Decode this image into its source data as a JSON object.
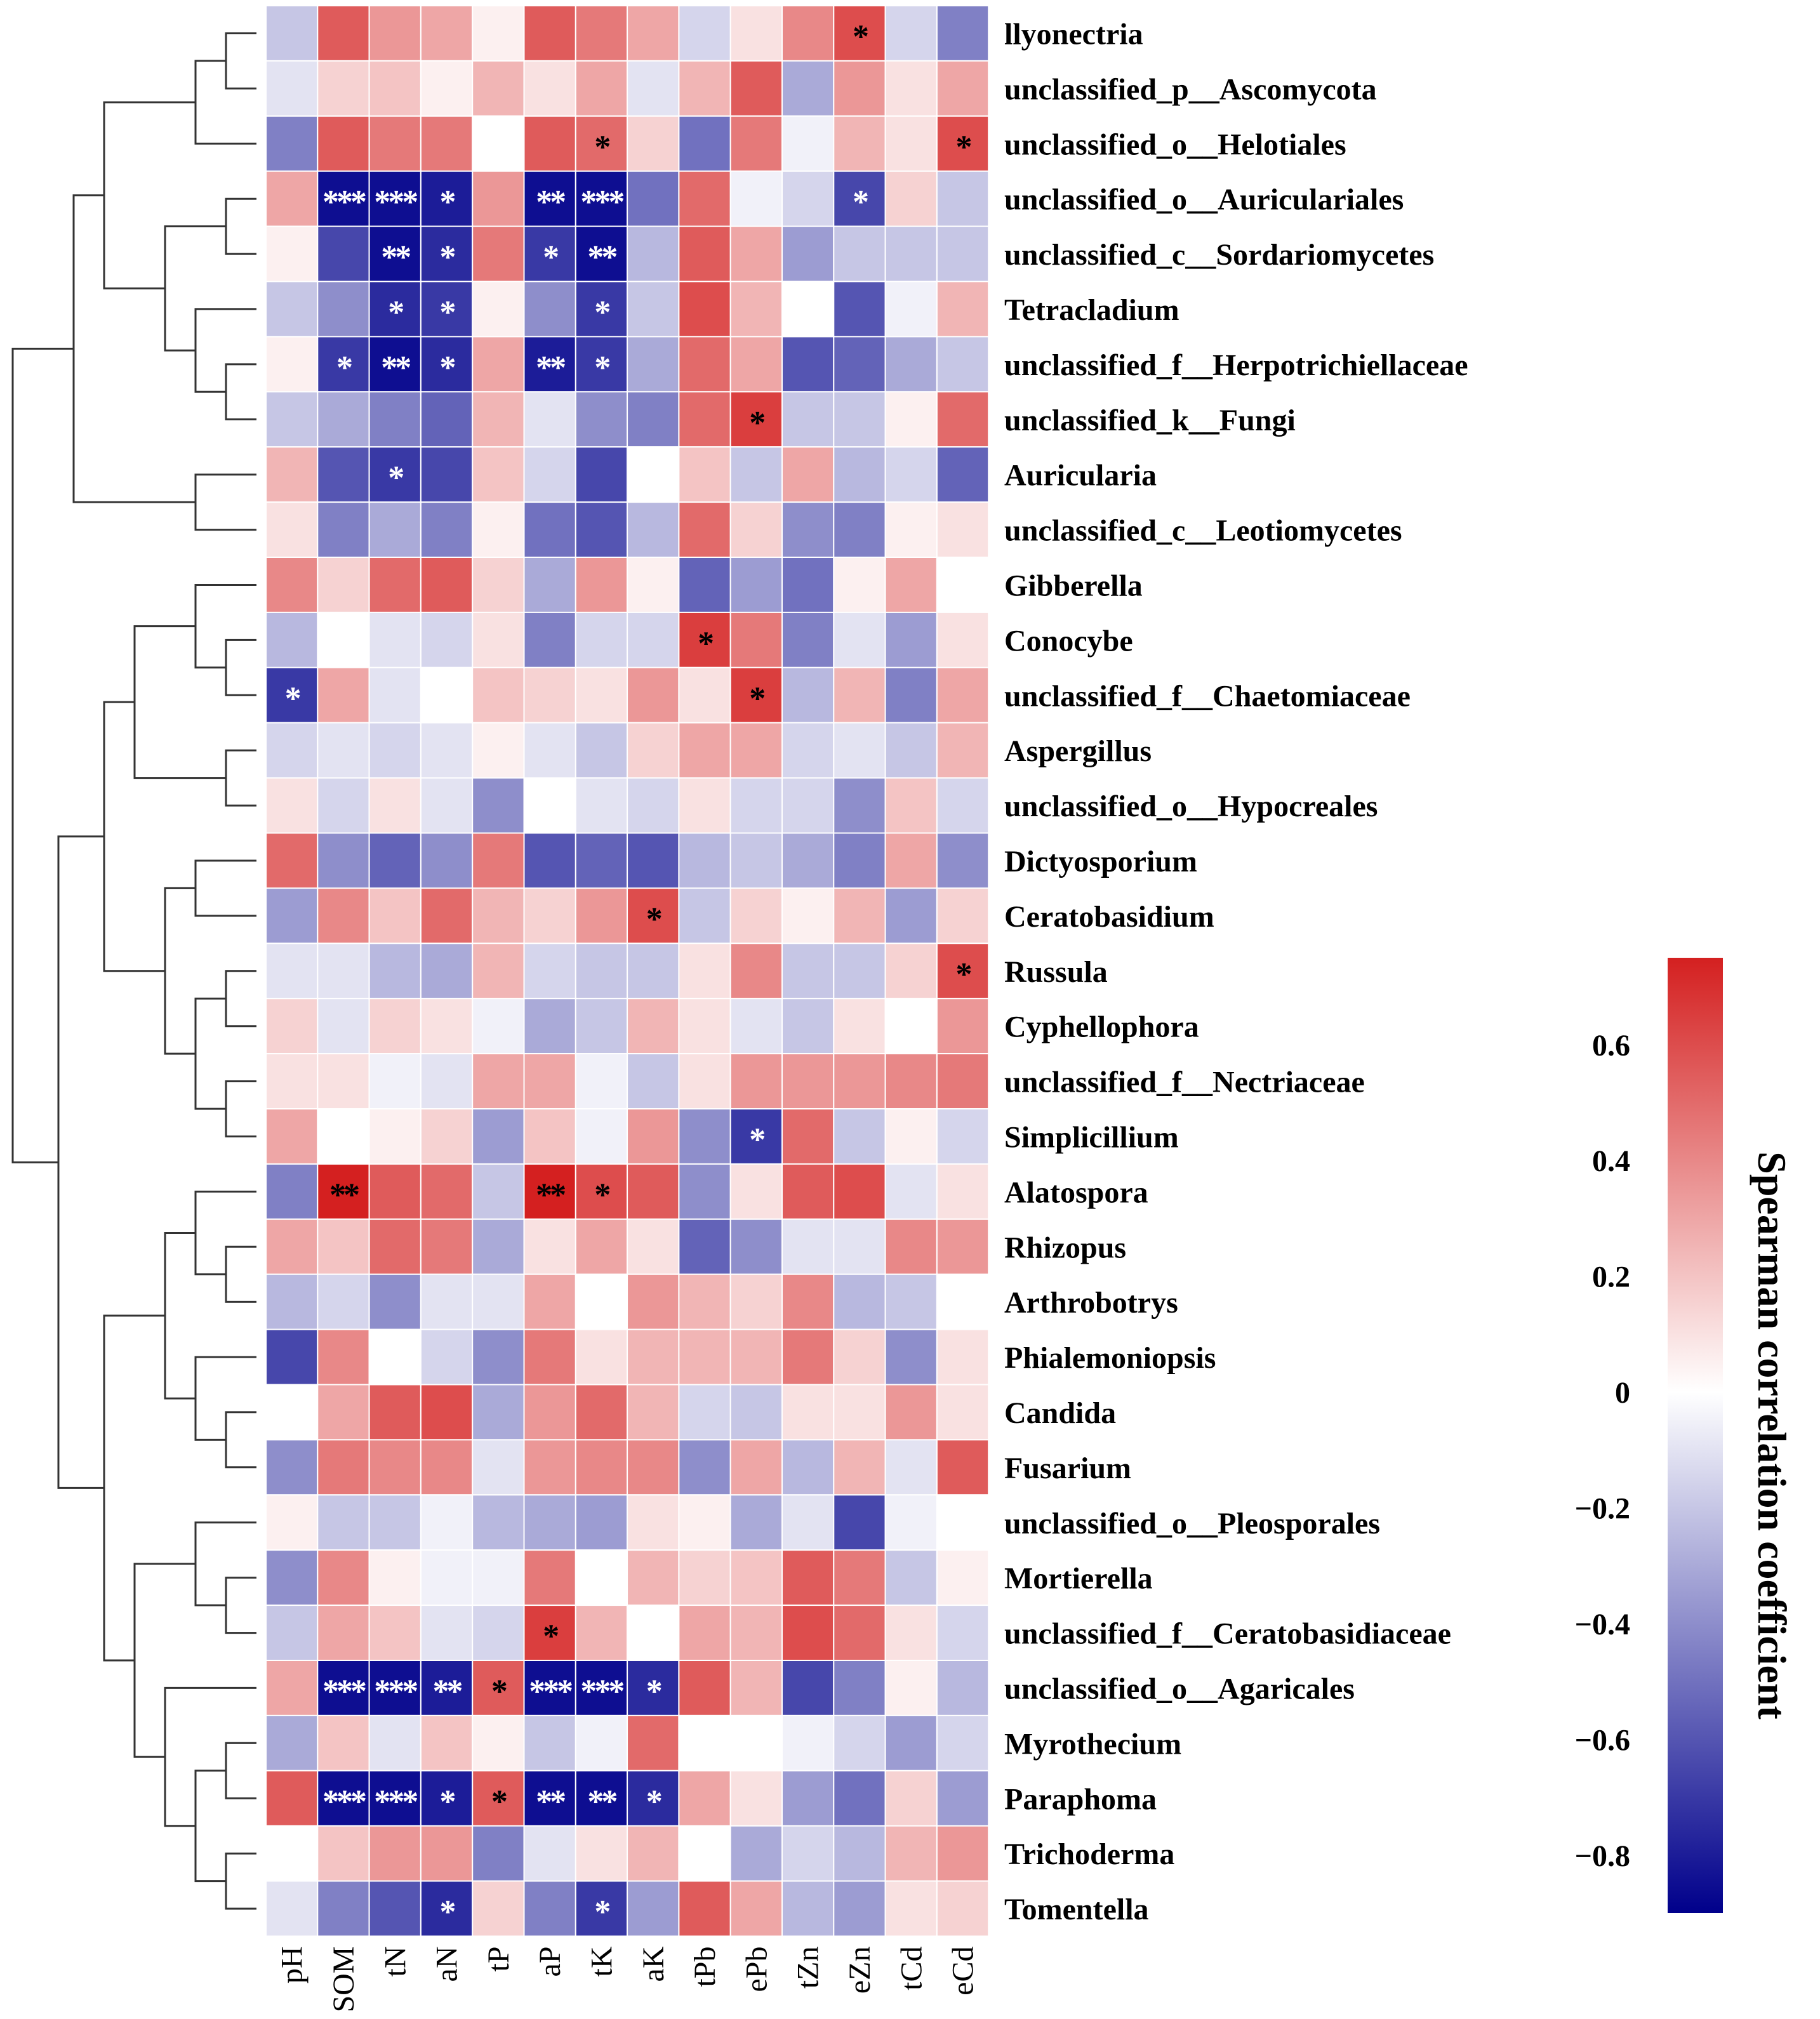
{
  "chart_data": {
    "type": "heatmap",
    "title": "",
    "columns": [
      "pH",
      "SOM",
      "tN",
      "aN",
      "tP",
      "aP",
      "tK",
      "aK",
      "tPb",
      "ePb",
      "tZn",
      "eZn",
      "tCd",
      "eCd"
    ],
    "rows": [
      "llyonectria",
      "unclassified_p__Ascomycota",
      "unclassified_o__Helotiales",
      "unclassified_o__Auriculariales",
      "unclassified_c__Sordariomycetes",
      "Tetracladium",
      "unclassified_f__Herpotrichiellaceae",
      "unclassified_k__Fungi",
      "Auricularia",
      "unclassified_c__Leotiomycetes",
      "Gibberella",
      "Conocybe",
      "unclassified_f__Chaetomiaceae",
      "Aspergillus",
      "unclassified_o__Hypocreales",
      "Dictyosporium",
      "Ceratobasidium",
      "Russula",
      "Cyphellophora",
      "unclassified_f__Nectriaceae",
      "Simplicillium",
      "Alatospora",
      "Rhizopus",
      "Arthrobotrys",
      "Phialemoniopsis",
      "Candida",
      "Fusarium",
      "unclassified_o__Pleosporales",
      "Mortierella",
      "unclassified_f__Ceratobasidiaceae",
      "unclassified_o__Agaricales",
      "Myrothecium",
      "Paraphoma",
      "Trichoderma",
      "Tomentella"
    ],
    "values": [
      [
        -0.2,
        0.55,
        0.35,
        0.3,
        0.05,
        0.55,
        0.45,
        0.3,
        -0.15,
        0.1,
        0.4,
        0.6,
        -0.15,
        -0.45
      ],
      [
        -0.1,
        0.15,
        0.2,
        0.05,
        0.25,
        0.1,
        0.3,
        -0.1,
        0.25,
        0.55,
        -0.3,
        0.35,
        0.1,
        0.3
      ],
      [
        -0.45,
        0.55,
        0.45,
        0.45,
        0.0,
        0.55,
        0.5,
        0.15,
        -0.5,
        0.45,
        -0.05,
        0.25,
        0.1,
        0.6
      ],
      [
        0.3,
        -0.85,
        -0.85,
        -0.8,
        0.35,
        -0.85,
        -0.85,
        -0.5,
        0.5,
        -0.05,
        -0.15,
        -0.65,
        0.15,
        -0.2
      ],
      [
        0.05,
        -0.65,
        -0.85,
        -0.75,
        0.45,
        -0.7,
        -0.85,
        -0.25,
        0.55,
        0.3,
        -0.35,
        -0.2,
        -0.2,
        -0.2
      ],
      [
        -0.2,
        -0.4,
        -0.75,
        -0.7,
        0.05,
        -0.4,
        -0.7,
        -0.2,
        0.6,
        0.25,
        0.0,
        -0.6,
        -0.05,
        0.25
      ],
      [
        0.05,
        -0.7,
        -0.85,
        -0.75,
        0.3,
        -0.8,
        -0.7,
        -0.3,
        0.5,
        0.3,
        -0.6,
        -0.55,
        -0.3,
        -0.2
      ],
      [
        -0.2,
        -0.3,
        -0.45,
        -0.55,
        0.25,
        -0.1,
        -0.4,
        -0.45,
        0.5,
        0.65,
        -0.2,
        -0.2,
        0.05,
        0.5
      ],
      [
        0.25,
        -0.6,
        -0.7,
        -0.65,
        0.2,
        -0.15,
        -0.65,
        0.0,
        0.2,
        -0.2,
        0.3,
        -0.25,
        -0.15,
        -0.55
      ],
      [
        0.1,
        -0.45,
        -0.3,
        -0.45,
        0.05,
        -0.5,
        -0.6,
        -0.25,
        0.5,
        0.15,
        -0.4,
        -0.45,
        0.05,
        0.1
      ],
      [
        0.4,
        0.15,
        0.5,
        0.55,
        0.15,
        -0.3,
        0.35,
        0.05,
        -0.55,
        -0.35,
        -0.5,
        0.05,
        0.3,
        0.0
      ],
      [
        -0.25,
        0.0,
        -0.1,
        -0.15,
        0.1,
        -0.45,
        -0.15,
        -0.15,
        0.65,
        0.45,
        -0.45,
        -0.1,
        -0.35,
        0.1
      ],
      [
        -0.7,
        0.3,
        -0.1,
        0.0,
        0.2,
        0.15,
        0.1,
        0.35,
        0.1,
        0.65,
        -0.25,
        0.25,
        -0.45,
        0.3
      ],
      [
        -0.15,
        -0.1,
        -0.15,
        -0.1,
        0.05,
        -0.1,
        -0.2,
        0.15,
        0.3,
        0.3,
        -0.15,
        -0.1,
        -0.2,
        0.25
      ],
      [
        0.1,
        -0.15,
        0.1,
        -0.1,
        -0.4,
        0.0,
        -0.1,
        -0.15,
        0.1,
        -0.15,
        -0.15,
        -0.4,
        0.2,
        -0.15
      ],
      [
        0.5,
        -0.4,
        -0.55,
        -0.4,
        0.45,
        -0.6,
        -0.55,
        -0.6,
        -0.25,
        -0.2,
        -0.3,
        -0.45,
        0.3,
        -0.4
      ],
      [
        -0.35,
        0.4,
        0.2,
        0.5,
        0.25,
        0.15,
        0.35,
        0.6,
        -0.2,
        0.15,
        0.05,
        0.25,
        -0.35,
        0.15
      ],
      [
        -0.1,
        -0.1,
        -0.25,
        -0.3,
        0.25,
        -0.15,
        -0.2,
        -0.2,
        0.1,
        0.4,
        -0.2,
        -0.2,
        0.15,
        0.6
      ],
      [
        0.15,
        -0.1,
        0.15,
        0.1,
        -0.05,
        -0.3,
        -0.2,
        0.25,
        0.1,
        -0.1,
        -0.2,
        0.1,
        0.0,
        0.35
      ],
      [
        0.1,
        0.1,
        -0.05,
        -0.1,
        0.3,
        0.3,
        -0.05,
        -0.2,
        0.1,
        0.35,
        0.35,
        0.35,
        0.4,
        0.45
      ],
      [
        0.3,
        0.0,
        0.05,
        0.15,
        -0.35,
        0.2,
        -0.05,
        0.35,
        -0.4,
        -0.7,
        0.5,
        -0.2,
        0.05,
        -0.15
      ],
      [
        -0.45,
        0.75,
        0.55,
        0.5,
        -0.2,
        0.75,
        0.6,
        0.55,
        -0.4,
        0.1,
        0.55,
        0.6,
        -0.1,
        0.1
      ],
      [
        0.3,
        0.2,
        0.5,
        0.45,
        -0.3,
        0.1,
        0.3,
        0.1,
        -0.55,
        -0.4,
        -0.1,
        -0.1,
        0.4,
        0.35
      ],
      [
        -0.25,
        -0.15,
        -0.4,
        -0.1,
        -0.1,
        0.3,
        0.0,
        0.35,
        0.25,
        0.15,
        0.4,
        -0.25,
        -0.2,
        0.0
      ],
      [
        -0.65,
        0.4,
        0.0,
        -0.15,
        -0.4,
        0.45,
        0.1,
        0.25,
        0.25,
        0.25,
        0.45,
        0.15,
        -0.4,
        0.1
      ],
      [
        0.0,
        0.3,
        0.55,
        0.6,
        -0.3,
        0.35,
        0.5,
        0.25,
        -0.15,
        -0.2,
        0.1,
        0.1,
        0.35,
        0.1
      ],
      [
        -0.4,
        0.45,
        0.4,
        0.4,
        -0.1,
        0.35,
        0.4,
        0.4,
        -0.4,
        0.3,
        -0.25,
        0.25,
        -0.1,
        0.55
      ],
      [
        0.05,
        -0.2,
        -0.2,
        -0.05,
        -0.25,
        -0.3,
        -0.35,
        0.1,
        0.05,
        -0.3,
        -0.1,
        -0.65,
        -0.05,
        0.0
      ],
      [
        -0.4,
        0.4,
        0.05,
        -0.05,
        -0.05,
        0.45,
        0.0,
        0.25,
        0.15,
        0.2,
        0.55,
        0.45,
        -0.2,
        0.05
      ],
      [
        -0.2,
        0.3,
        0.2,
        -0.1,
        -0.15,
        0.65,
        0.25,
        0.0,
        0.3,
        0.25,
        0.6,
        0.5,
        0.1,
        -0.15
      ],
      [
        0.3,
        -0.85,
        -0.85,
        -0.8,
        0.55,
        -0.85,
        -0.85,
        -0.75,
        0.55,
        0.25,
        -0.65,
        -0.45,
        0.05,
        -0.25
      ],
      [
        -0.3,
        0.2,
        -0.1,
        0.2,
        0.05,
        -0.2,
        -0.05,
        0.5,
        0.0,
        0.0,
        -0.05,
        -0.15,
        -0.35,
        -0.15
      ],
      [
        0.55,
        -0.85,
        -0.85,
        -0.8,
        0.55,
        -0.85,
        -0.85,
        -0.75,
        0.3,
        0.1,
        -0.35,
        -0.5,
        0.15,
        -0.35
      ],
      [
        0.0,
        0.2,
        0.35,
        0.35,
        -0.45,
        -0.1,
        0.1,
        0.25,
        0.0,
        -0.3,
        -0.15,
        -0.25,
        0.25,
        0.35
      ],
      [
        -0.1,
        -0.45,
        -0.6,
        -0.75,
        0.15,
        -0.45,
        -0.7,
        -0.35,
        0.55,
        0.3,
        -0.25,
        -0.35,
        0.1,
        0.15
      ]
    ],
    "significance": [
      [
        "",
        "",
        "",
        "",
        "",
        "",
        "",
        "",
        "",
        "",
        "",
        "*",
        "",
        ""
      ],
      [
        "",
        "",
        "",
        "",
        "",
        "",
        "",
        "",
        "",
        "",
        "",
        "",
        "",
        ""
      ],
      [
        "",
        "",
        "",
        "",
        "",
        "",
        "*",
        "",
        "",
        "",
        "",
        "",
        "",
        "*"
      ],
      [
        "",
        "***",
        "***",
        "*",
        "",
        "**",
        "***",
        "",
        "",
        "",
        "",
        "*",
        "",
        ""
      ],
      [
        "",
        "",
        "**",
        "*",
        "",
        "*",
        "**",
        "",
        "",
        "",
        "",
        "",
        "",
        ""
      ],
      [
        "",
        "",
        "*",
        "*",
        "",
        "",
        "*",
        "",
        "",
        "",
        "",
        "",
        "",
        ""
      ],
      [
        "",
        "*",
        "**",
        "*",
        "",
        "**",
        "*",
        "",
        "",
        "",
        "",
        "",
        "",
        ""
      ],
      [
        "",
        "",
        "",
        "",
        "",
        "",
        "",
        "",
        "",
        "*",
        "",
        "",
        "",
        ""
      ],
      [
        "",
        "",
        "*",
        "",
        "",
        "",
        "",
        "",
        "",
        "",
        "",
        "",
        "",
        ""
      ],
      [
        "",
        "",
        "",
        "",
        "",
        "",
        "",
        "",
        "",
        "",
        "",
        "",
        "",
        ""
      ],
      [
        "",
        "",
        "",
        "",
        "",
        "",
        "",
        "",
        "",
        "",
        "",
        "",
        "",
        ""
      ],
      [
        "",
        "",
        "",
        "",
        "",
        "",
        "",
        "",
        "*",
        "",
        "",
        "",
        "",
        ""
      ],
      [
        "*",
        "",
        "",
        "",
        "",
        "",
        "",
        "",
        "",
        "*",
        "",
        "",
        "",
        ""
      ],
      [
        "",
        "",
        "",
        "",
        "",
        "",
        "",
        "",
        "",
        "",
        "",
        "",
        "",
        ""
      ],
      [
        "",
        "",
        "",
        "",
        "",
        "",
        "",
        "",
        "",
        "",
        "",
        "",
        "",
        ""
      ],
      [
        "",
        "",
        "",
        "",
        "",
        "",
        "",
        "",
        "",
        "",
        "",
        "",
        "",
        ""
      ],
      [
        "",
        "",
        "",
        "",
        "",
        "",
        "",
        "*",
        "",
        "",
        "",
        "",
        "",
        ""
      ],
      [
        "",
        "",
        "",
        "",
        "",
        "",
        "",
        "",
        "",
        "",
        "",
        "",
        "",
        "*"
      ],
      [
        "",
        "",
        "",
        "",
        "",
        "",
        "",
        "",
        "",
        "",
        "",
        "",
        "",
        ""
      ],
      [
        "",
        "",
        "",
        "",
        "",
        "",
        "",
        "",
        "",
        "",
        "",
        "",
        "",
        ""
      ],
      [
        "",
        "",
        "",
        "",
        "",
        "",
        "",
        "",
        "",
        "*",
        "",
        "",
        "",
        ""
      ],
      [
        "",
        "**",
        "",
        "",
        "",
        "**",
        "*",
        "",
        "",
        "",
        "",
        "",
        "",
        ""
      ],
      [
        "",
        "",
        "",
        "",
        "",
        "",
        "",
        "",
        "",
        "",
        "",
        "",
        "",
        ""
      ],
      [
        "",
        "",
        "",
        "",
        "",
        "",
        "",
        "",
        "",
        "",
        "",
        "",
        "",
        ""
      ],
      [
        "",
        "",
        "",
        "",
        "",
        "",
        "",
        "",
        "",
        "",
        "",
        "",
        "",
        ""
      ],
      [
        "",
        "",
        "",
        "",
        "",
        "",
        "",
        "",
        "",
        "",
        "",
        "",
        "",
        ""
      ],
      [
        "",
        "",
        "",
        "",
        "",
        "",
        "",
        "",
        "",
        "",
        "",
        "",
        "",
        ""
      ],
      [
        "",
        "",
        "",
        "",
        "",
        "",
        "",
        "",
        "",
        "",
        "",
        "",
        "",
        ""
      ],
      [
        "",
        "",
        "",
        "",
        "",
        "",
        "",
        "",
        "",
        "",
        "",
        "",
        "",
        ""
      ],
      [
        "",
        "",
        "",
        "",
        "",
        "*",
        "",
        "",
        "",
        "",
        "",
        "",
        "",
        ""
      ],
      [
        "",
        "***",
        "***",
        "**",
        "*",
        "***",
        "***",
        "*",
        "",
        "",
        "",
        "",
        "",
        ""
      ],
      [
        "",
        "",
        "",
        "",
        "",
        "",
        "",
        "",
        "",
        "",
        "",
        "",
        "",
        ""
      ],
      [
        "",
        "***",
        "***",
        "*",
        "*",
        "**",
        "**",
        "*",
        "",
        "",
        "",
        "",
        "",
        ""
      ],
      [
        "",
        "",
        "",
        "",
        "",
        "",
        "",
        "",
        "",
        "",
        "",
        "",
        "",
        ""
      ],
      [
        "",
        "",
        "",
        "*",
        "",
        "",
        "*",
        "",
        "",
        "",
        "",
        "",
        "",
        ""
      ]
    ],
    "colorbar": {
      "label": "Spearman correlation coefficient",
      "range": [
        -0.9,
        0.75
      ],
      "ticks": [
        0.6,
        0.4,
        0.2,
        0,
        -0.2,
        -0.4,
        -0.6,
        -0.8
      ],
      "tick_labels": [
        "0.6",
        "0.4",
        "0.2",
        "0",
        "−0.2",
        "−0.4",
        "−0.6",
        "−0.8"
      ],
      "colors": {
        "low": "#00008b",
        "mid": "#ffffff",
        "high": "#d42020"
      }
    },
    "dendrogram": "row clustering tree on left side"
  }
}
